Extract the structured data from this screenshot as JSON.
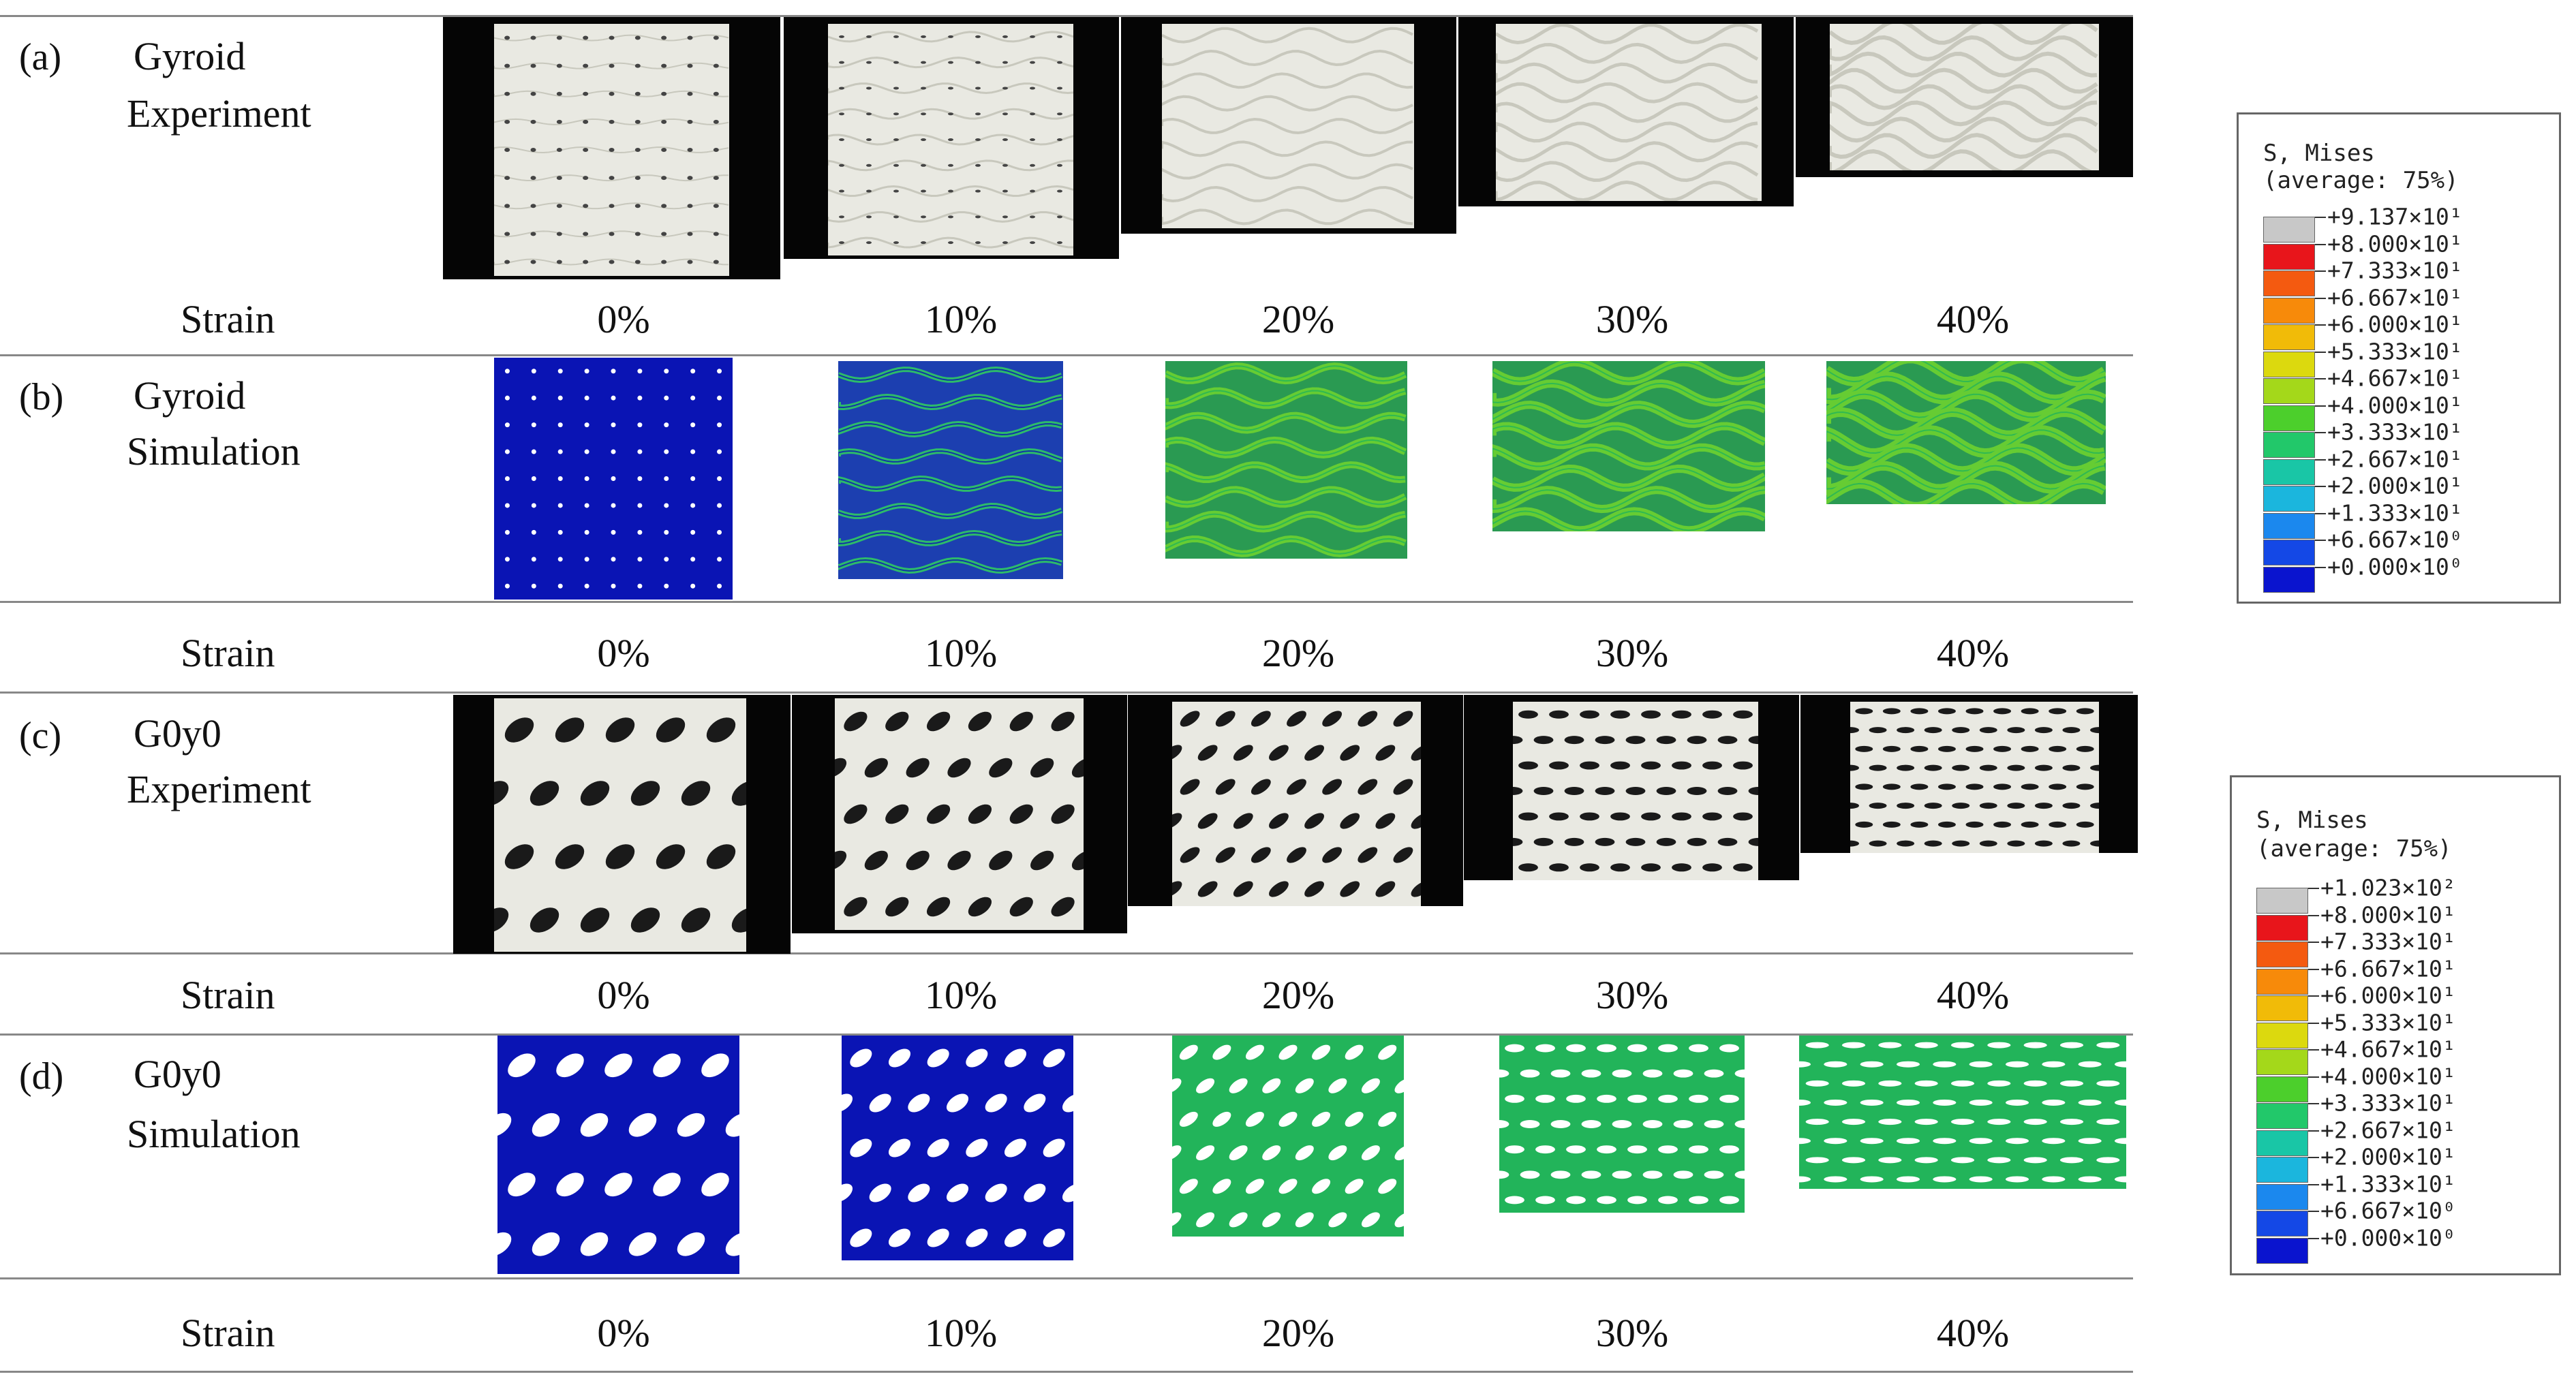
{
  "rows": [
    {
      "panel": "(a)",
      "title_line1": "Gyroid",
      "title_line2": "Experiment",
      "kind": "experiment",
      "pattern": "gyroid"
    },
    {
      "panel": "(b)",
      "title_line1": "Gyroid",
      "title_line2": "Simulation",
      "kind": "simulation",
      "pattern": "gyroid"
    },
    {
      "panel": "(c)",
      "title_line1": "G0y0",
      "title_line2": "Experiment",
      "kind": "experiment",
      "pattern": "g0y0"
    },
    {
      "panel": "(d)",
      "title_line1": "G0y0",
      "title_line2": "Simulation",
      "kind": "simulation",
      "pattern": "g0y0"
    }
  ],
  "strain_label": "Strain",
  "strain_values": [
    "0%",
    "10%",
    "20%",
    "30%",
    "40%"
  ],
  "legends": [
    {
      "title_line1": "S, Mises",
      "title_line2": "(average: 75%)",
      "values": [
        "+9.137×10¹",
        "+8.000×10¹",
        "+7.333×10¹",
        "+6.667×10¹",
        "+6.000×10¹",
        "+5.333×10¹",
        "+4.667×10¹",
        "+4.000×10¹",
        "+3.333×10¹",
        "+2.667×10¹",
        "+2.000×10¹",
        "+1.333×10¹",
        "+6.667×10⁰",
        "+0.000×10⁰"
      ]
    },
    {
      "title_line1": "S, Mises",
      "title_line2": "(average: 75%)",
      "values": [
        "+1.023×10²",
        "+8.000×10¹",
        "+7.333×10¹",
        "+6.667×10¹",
        "+6.000×10¹",
        "+5.333×10¹",
        "+4.667×10¹",
        "+4.000×10¹",
        "+3.333×10¹",
        "+2.667×10¹",
        "+2.000×10¹",
        "+1.333×10¹",
        "+6.667×10⁰",
        "+0.000×10⁰"
      ]
    }
  ],
  "colors": {
    "legend_bands": [
      "#c8c8c8",
      "#e8151b",
      "#f45a10",
      "#f78a0a",
      "#f1bb08",
      "#dcd90e",
      "#a4d81a",
      "#4ccf2c",
      "#22c86a",
      "#19c6a6",
      "#1bb6dd",
      "#1b88ee",
      "#1448e6",
      "#0a14cf"
    ],
    "stress_low": "#0a14b4",
    "stress_mid": "#22b45a",
    "stress_high": "#66cc33",
    "specimen": "#e9e9e2",
    "background_dark": "#050505"
  }
}
